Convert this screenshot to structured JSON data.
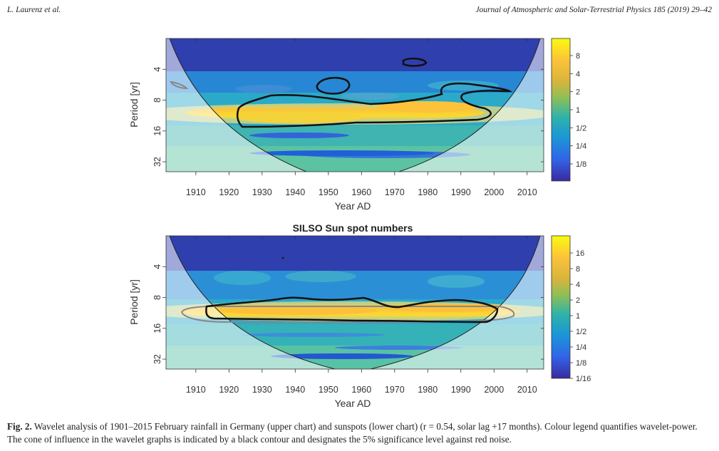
{
  "header": {
    "left": "L. Laurenz et al.",
    "right": "Journal of Atmospheric and Solar-Terrestrial Physics 185 (2019) 29–42"
  },
  "caption": {
    "label": "Fig. 2.",
    "text": "Wavelet analysis of 1901–2015 February rainfall in Germany (upper chart) and sunspots (lower chart) (r = 0.54, solar lag +17 months). Colour legend quantifies wavelet-power. The cone of influence in the wavelet graphs is indicated by a black contour and designates the 5% significance level against red noise."
  },
  "chart_data": [
    {
      "type": "heatmap",
      "title": "",
      "xlabel": "Year AD",
      "ylabel": "Period [yr]",
      "xlim": [
        1901,
        2015
      ],
      "y_scale": "log2",
      "ylim": [
        2,
        40
      ],
      "x_ticks": [
        "1910",
        "1920",
        "1930",
        "1940",
        "1950",
        "1960",
        "1970",
        "1980",
        "1990",
        "2000",
        "2010"
      ],
      "y_ticks": [
        "4",
        "8",
        "16",
        "32"
      ],
      "colorbar_ticks": [
        "8",
        "4",
        "2",
        "1",
        "1/2",
        "1/4",
        "1/8"
      ],
      "dominant_band_period": 10,
      "significant_region_years": [
        1925,
        1995
      ]
    },
    {
      "type": "heatmap",
      "title": "SILSO Sun spot numbers",
      "xlabel": "Year AD",
      "ylabel": "Period [yr]",
      "xlim": [
        1901,
        2015
      ],
      "y_scale": "log2",
      "ylim": [
        2,
        40
      ],
      "x_ticks": [
        "1910",
        "1920",
        "1930",
        "1940",
        "1950",
        "1960",
        "1970",
        "1980",
        "1990",
        "2000",
        "2010"
      ],
      "y_ticks": [
        "4",
        "8",
        "16",
        "32"
      ],
      "colorbar_ticks": [
        "16",
        "8",
        "4",
        "2",
        "1",
        "1/2",
        "1/4",
        "1/8",
        "1/16"
      ],
      "dominant_band_period": 11,
      "significant_region_years": [
        1915,
        1998
      ]
    }
  ]
}
